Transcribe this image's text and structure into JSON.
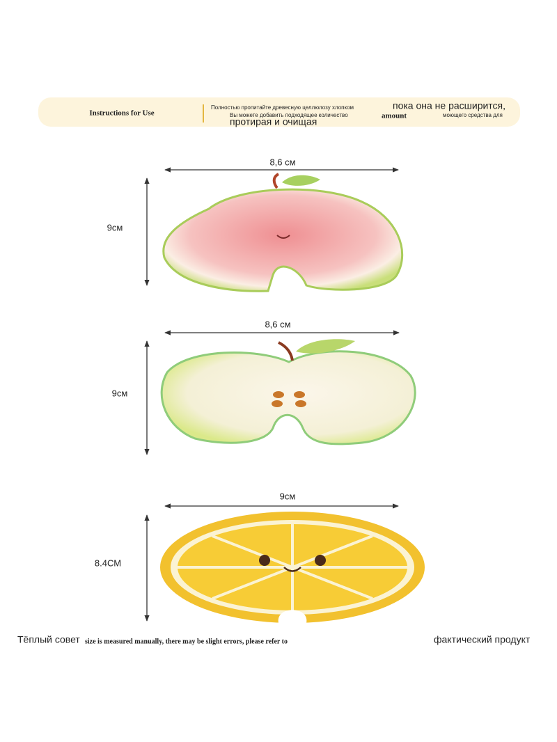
{
  "banner": {
    "title": "Instructions for Use",
    "line1": "Полностью пропитайте древесную целлюлозу хлопком",
    "line1_overlay": "пока она не расширится,",
    "line2": "Вы можете добавить подходящее количество",
    "line2_overlay": "amount",
    "line2_end": "моющего средства для",
    "line3": "протирая и очищая"
  },
  "items": [
    {
      "width_label": "8,6 см",
      "height_label": "9см"
    },
    {
      "width_label": "8,6 см",
      "height_label": "9см"
    },
    {
      "width_label": "9см",
      "height_label": "8.4СМ"
    }
  ],
  "footer": {
    "start": "Тёплый совет",
    "middle": "size is measured manually, there may be slight errors, please refer to",
    "end": "фактический продукт"
  }
}
